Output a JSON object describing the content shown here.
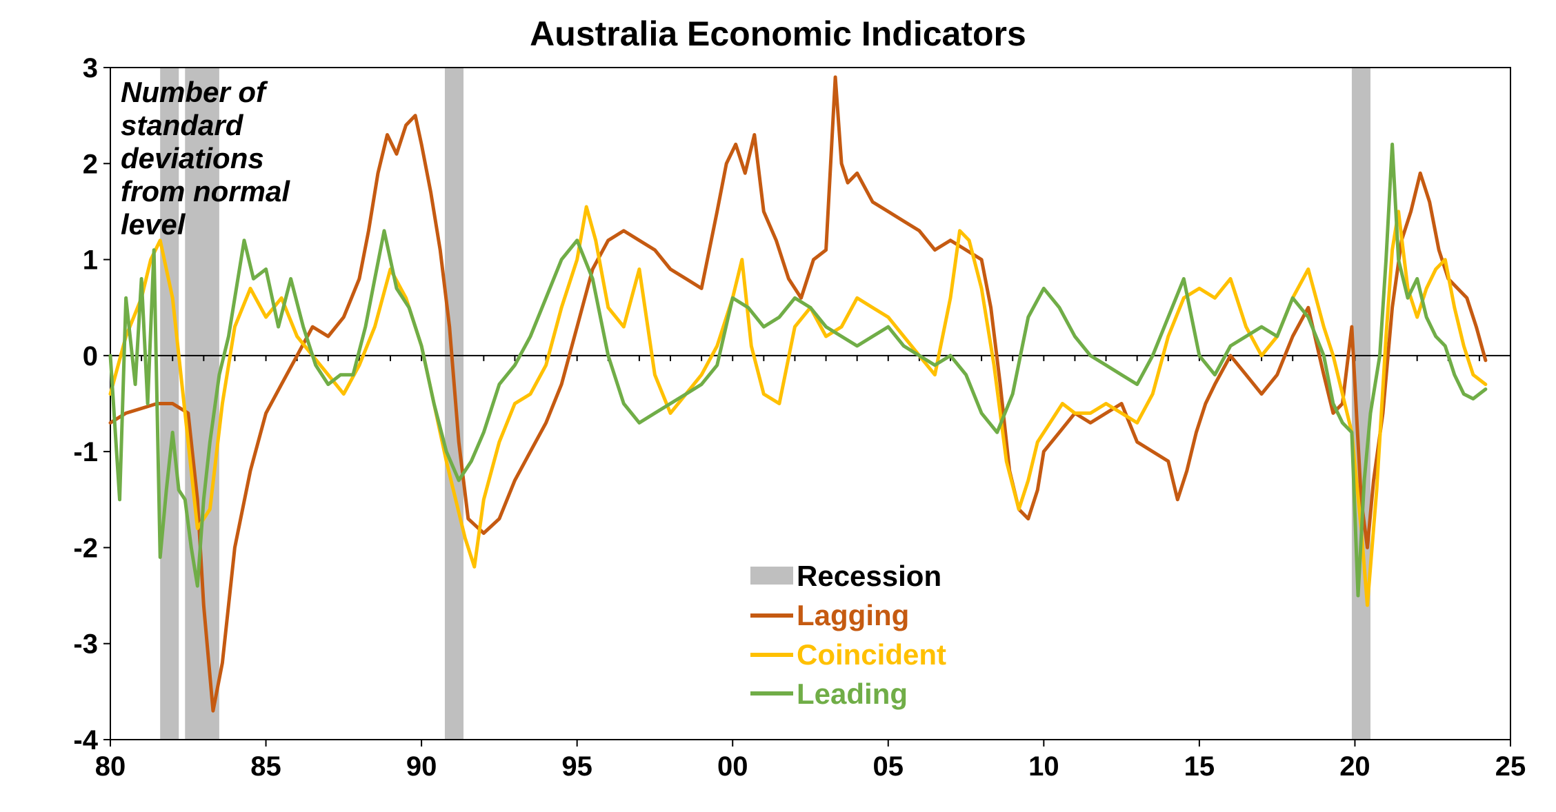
{
  "chart_data": {
    "type": "line",
    "title": "Australia Economic Indicators",
    "annotation": [
      "Number of",
      "standard",
      "deviations",
      "from normal",
      "level"
    ],
    "xlabel": "",
    "ylabel": "",
    "xlim": [
      1980,
      2025
    ],
    "ylim": [
      -4,
      3
    ],
    "x_ticks": [
      1980,
      1985,
      1990,
      1995,
      2000,
      2005,
      2010,
      2015,
      2020,
      2025
    ],
    "x_tick_labels": [
      "80",
      "85",
      "90",
      "95",
      "00",
      "05",
      "10",
      "15",
      "20",
      "25"
    ],
    "y_ticks": [
      -4,
      -3,
      -2,
      -1,
      0,
      1,
      2,
      3
    ],
    "y_tick_labels": [
      "-4",
      "-3",
      "-2",
      "-1",
      "0",
      "1",
      "2",
      "3"
    ],
    "recessions": [
      {
        "start": 1981.6,
        "end": 1982.2
      },
      {
        "start": 1982.4,
        "end": 1983.5
      },
      {
        "start": 1990.75,
        "end": 1991.35
      },
      {
        "start": 2019.9,
        "end": 2020.5
      }
    ],
    "colors": {
      "recession": "#bfbfbf",
      "lagging": "#c55a11",
      "coincident": "#ffc000",
      "leading": "#70ad47"
    },
    "legend": {
      "position": "bottom-center",
      "items": [
        {
          "key": "recession",
          "label": "Recession",
          "kind": "band"
        },
        {
          "key": "lagging",
          "label": "Lagging",
          "kind": "line"
        },
        {
          "key": "coincident",
          "label": "Coincident",
          "kind": "line"
        },
        {
          "key": "leading",
          "label": "Leading",
          "kind": "line"
        }
      ]
    },
    "series": [
      {
        "name": "Lagging",
        "key": "lagging",
        "x": [
          1980.0,
          1980.5,
          1981.0,
          1981.5,
          1982.0,
          1982.5,
          1982.8,
          1983.0,
          1983.3,
          1983.6,
          1984.0,
          1984.5,
          1985.0,
          1985.5,
          1986.0,
          1986.5,
          1987.0,
          1987.5,
          1988.0,
          1988.3,
          1988.6,
          1988.9,
          1989.2,
          1989.5,
          1989.8,
          1990.0,
          1990.3,
          1990.6,
          1990.9,
          1991.2,
          1991.5,
          1992.0,
          1992.5,
          1993.0,
          1993.5,
          1994.0,
          1994.5,
          1995.0,
          1995.5,
          1996.0,
          1996.5,
          1997.0,
          1997.5,
          1998.0,
          1998.5,
          1999.0,
          1999.5,
          1999.8,
          2000.1,
          2000.4,
          2000.7,
          2001.0,
          2001.4,
          2001.8,
          2002.2,
          2002.6,
          2003.0,
          2003.3,
          2003.5,
          2003.7,
          2004.0,
          2004.5,
          2005.0,
          2005.5,
          2006.0,
          2006.5,
          2007.0,
          2007.5,
          2008.0,
          2008.3,
          2008.6,
          2008.9,
          2009.2,
          2009.5,
          2009.8,
          2010.0,
          2010.5,
          2011.0,
          2011.5,
          2012.0,
          2012.5,
          2013.0,
          2013.5,
          2014.0,
          2014.3,
          2014.6,
          2014.9,
          2015.2,
          2015.5,
          2016.0,
          2016.5,
          2017.0,
          2017.5,
          2018.0,
          2018.5,
          2019.0,
          2019.3,
          2019.6,
          2019.9,
          2020.2,
          2020.4,
          2020.6,
          2020.9,
          2021.2,
          2021.5,
          2021.8,
          2022.1,
          2022.4,
          2022.7,
          2023.0,
          2023.3,
          2023.6,
          2023.9,
          2024.2
        ],
        "y": [
          -0.7,
          -0.6,
          -0.55,
          -0.5,
          -0.5,
          -0.6,
          -1.5,
          -2.6,
          -3.7,
          -3.2,
          -2.0,
          -1.2,
          -0.6,
          -0.3,
          0.0,
          0.3,
          0.2,
          0.4,
          0.8,
          1.3,
          1.9,
          2.3,
          2.1,
          2.4,
          2.5,
          2.2,
          1.7,
          1.1,
          0.3,
          -0.9,
          -1.7,
          -1.85,
          -1.7,
          -1.3,
          -1.0,
          -0.7,
          -0.3,
          0.3,
          0.9,
          1.2,
          1.3,
          1.2,
          1.1,
          0.9,
          0.8,
          0.7,
          1.5,
          2.0,
          2.2,
          1.9,
          2.3,
          1.5,
          1.2,
          0.8,
          0.6,
          1.0,
          1.1,
          2.9,
          2.0,
          1.8,
          1.9,
          1.6,
          1.5,
          1.4,
          1.3,
          1.1,
          1.2,
          1.1,
          1.0,
          0.5,
          -0.3,
          -1.2,
          -1.6,
          -1.7,
          -1.4,
          -1.0,
          -0.8,
          -0.6,
          -0.7,
          -0.6,
          -0.5,
          -0.9,
          -1.0,
          -1.1,
          -1.5,
          -1.2,
          -0.8,
          -0.5,
          -0.3,
          0.0,
          -0.2,
          -0.4,
          -0.2,
          0.2,
          0.5,
          -0.2,
          -0.6,
          -0.5,
          0.3,
          -1.5,
          -2.0,
          -1.3,
          -0.6,
          0.5,
          1.2,
          1.5,
          1.9,
          1.6,
          1.1,
          0.8,
          0.7,
          0.6,
          0.3,
          -0.05
        ]
      },
      {
        "name": "Coincident",
        "key": "coincident",
        "x": [
          1980.0,
          1980.5,
          1981.0,
          1981.3,
          1981.6,
          1982.0,
          1982.4,
          1982.8,
          1983.2,
          1983.6,
          1984.0,
          1984.5,
          1985.0,
          1985.5,
          1986.0,
          1986.5,
          1987.0,
          1987.5,
          1988.0,
          1988.5,
          1989.0,
          1989.5,
          1990.0,
          1990.4,
          1990.8,
          1991.1,
          1991.4,
          1991.7,
          1992.0,
          1992.5,
          1993.0,
          1993.5,
          1994.0,
          1994.5,
          1995.0,
          1995.3,
          1995.6,
          1996.0,
          1996.5,
          1997.0,
          1997.5,
          1998.0,
          1998.5,
          1999.0,
          1999.5,
          2000.0,
          2000.3,
          2000.6,
          2001.0,
          2001.5,
          2002.0,
          2002.5,
          2003.0,
          2003.5,
          2004.0,
          2004.5,
          2005.0,
          2005.5,
          2006.0,
          2006.5,
          2007.0,
          2007.3,
          2007.6,
          2008.0,
          2008.4,
          2008.8,
          2009.2,
          2009.5,
          2009.8,
          2010.2,
          2010.6,
          2011.0,
          2011.5,
          2012.0,
          2012.5,
          2013.0,
          2013.5,
          2014.0,
          2014.5,
          2015.0,
          2015.5,
          2016.0,
          2016.5,
          2017.0,
          2017.5,
          2018.0,
          2018.5,
          2019.0,
          2019.3,
          2019.6,
          2019.9,
          2020.2,
          2020.4,
          2020.7,
          2021.0,
          2021.2,
          2021.4,
          2021.7,
          2022.0,
          2022.3,
          2022.6,
          2022.9,
          2023.2,
          2023.5,
          2023.8,
          2024.2
        ],
        "y": [
          -0.4,
          0.2,
          0.6,
          1.0,
          1.2,
          0.6,
          -0.6,
          -1.8,
          -1.6,
          -0.5,
          0.3,
          0.7,
          0.4,
          0.6,
          0.2,
          0.0,
          -0.2,
          -0.4,
          -0.1,
          0.3,
          0.9,
          0.6,
          0.1,
          -0.5,
          -1.1,
          -1.5,
          -1.9,
          -2.2,
          -1.5,
          -0.9,
          -0.5,
          -0.4,
          -0.1,
          0.5,
          1.0,
          1.55,
          1.2,
          0.5,
          0.3,
          0.9,
          -0.2,
          -0.6,
          -0.4,
          -0.2,
          0.1,
          0.6,
          1.0,
          0.1,
          -0.4,
          -0.5,
          0.3,
          0.5,
          0.2,
          0.3,
          0.6,
          0.5,
          0.4,
          0.2,
          0.0,
          -0.2,
          0.6,
          1.3,
          1.2,
          0.7,
          -0.1,
          -1.1,
          -1.6,
          -1.3,
          -0.9,
          -0.7,
          -0.5,
          -0.6,
          -0.6,
          -0.5,
          -0.6,
          -0.7,
          -0.4,
          0.2,
          0.6,
          0.7,
          0.6,
          0.8,
          0.3,
          0.0,
          0.2,
          0.6,
          0.9,
          0.3,
          0.0,
          -0.4,
          -0.8,
          -1.8,
          -2.6,
          -1.4,
          0.2,
          1.1,
          1.5,
          0.7,
          0.4,
          0.7,
          0.9,
          1.0,
          0.5,
          0.1,
          -0.2,
          -0.3
        ]
      },
      {
        "name": "Leading",
        "key": "leading",
        "x": [
          1980.0,
          1980.3,
          1980.5,
          1980.8,
          1981.0,
          1981.2,
          1981.4,
          1981.6,
          1981.8,
          1982.0,
          1982.2,
          1982.4,
          1982.6,
          1982.8,
          1983.0,
          1983.2,
          1983.5,
          1983.8,
          1984.0,
          1984.3,
          1984.6,
          1985.0,
          1985.4,
          1985.8,
          1986.2,
          1986.6,
          1987.0,
          1987.4,
          1987.8,
          1988.2,
          1988.5,
          1988.8,
          1989.2,
          1989.6,
          1990.0,
          1990.4,
          1990.8,
          1991.2,
          1991.6,
          1992.0,
          1992.5,
          1993.0,
          1993.5,
          1994.0,
          1994.5,
          1995.0,
          1995.5,
          1996.0,
          1996.5,
          1997.0,
          1997.5,
          1998.0,
          1998.5,
          1999.0,
          1999.5,
          2000.0,
          2000.5,
          2001.0,
          2001.5,
          2002.0,
          2002.5,
          2003.0,
          2003.5,
          2004.0,
          2004.5,
          2005.0,
          2005.5,
          2006.0,
          2006.5,
          2007.0,
          2007.5,
          2008.0,
          2008.5,
          2009.0,
          2009.5,
          2010.0,
          2010.5,
          2011.0,
          2011.5,
          2012.0,
          2012.5,
          2013.0,
          2013.5,
          2014.0,
          2014.5,
          2015.0,
          2015.5,
          2016.0,
          2016.5,
          2017.0,
          2017.5,
          2018.0,
          2018.5,
          2019.0,
          2019.3,
          2019.6,
          2019.9,
          2020.1,
          2020.3,
          2020.5,
          2020.8,
          2021.0,
          2021.2,
          2021.4,
          2021.7,
          2022.0,
          2022.3,
          2022.6,
          2022.9,
          2023.2,
          2023.5,
          2023.8,
          2024.2
        ],
        "y": [
          0.0,
          -1.5,
          0.6,
          -0.3,
          0.8,
          -0.5,
          1.1,
          -2.1,
          -1.4,
          -0.8,
          -1.4,
          -1.5,
          -2.0,
          -2.4,
          -1.5,
          -0.9,
          -0.2,
          0.2,
          0.6,
          1.2,
          0.8,
          0.9,
          0.3,
          0.8,
          0.3,
          -0.1,
          -0.3,
          -0.2,
          -0.2,
          0.3,
          0.8,
          1.3,
          0.7,
          0.5,
          0.1,
          -0.5,
          -1.0,
          -1.3,
          -1.1,
          -0.8,
          -0.3,
          -0.1,
          0.2,
          0.6,
          1.0,
          1.2,
          0.8,
          0.0,
          -0.5,
          -0.7,
          -0.6,
          -0.5,
          -0.4,
          -0.3,
          -0.1,
          0.6,
          0.5,
          0.3,
          0.4,
          0.6,
          0.5,
          0.3,
          0.2,
          0.1,
          0.2,
          0.3,
          0.1,
          0.0,
          -0.1,
          0.0,
          -0.2,
          -0.6,
          -0.8,
          -0.4,
          0.4,
          0.7,
          0.5,
          0.2,
          0.0,
          -0.1,
          -0.2,
          -0.3,
          0.0,
          0.4,
          0.8,
          0.0,
          -0.2,
          0.1,
          0.2,
          0.3,
          0.2,
          0.6,
          0.4,
          0.0,
          -0.5,
          -0.7,
          -0.8,
          -2.5,
          -1.3,
          -0.6,
          0.0,
          1.0,
          2.2,
          1.0,
          0.6,
          0.8,
          0.4,
          0.2,
          0.1,
          -0.2,
          -0.4,
          -0.45,
          -0.35
        ]
      }
    ]
  }
}
